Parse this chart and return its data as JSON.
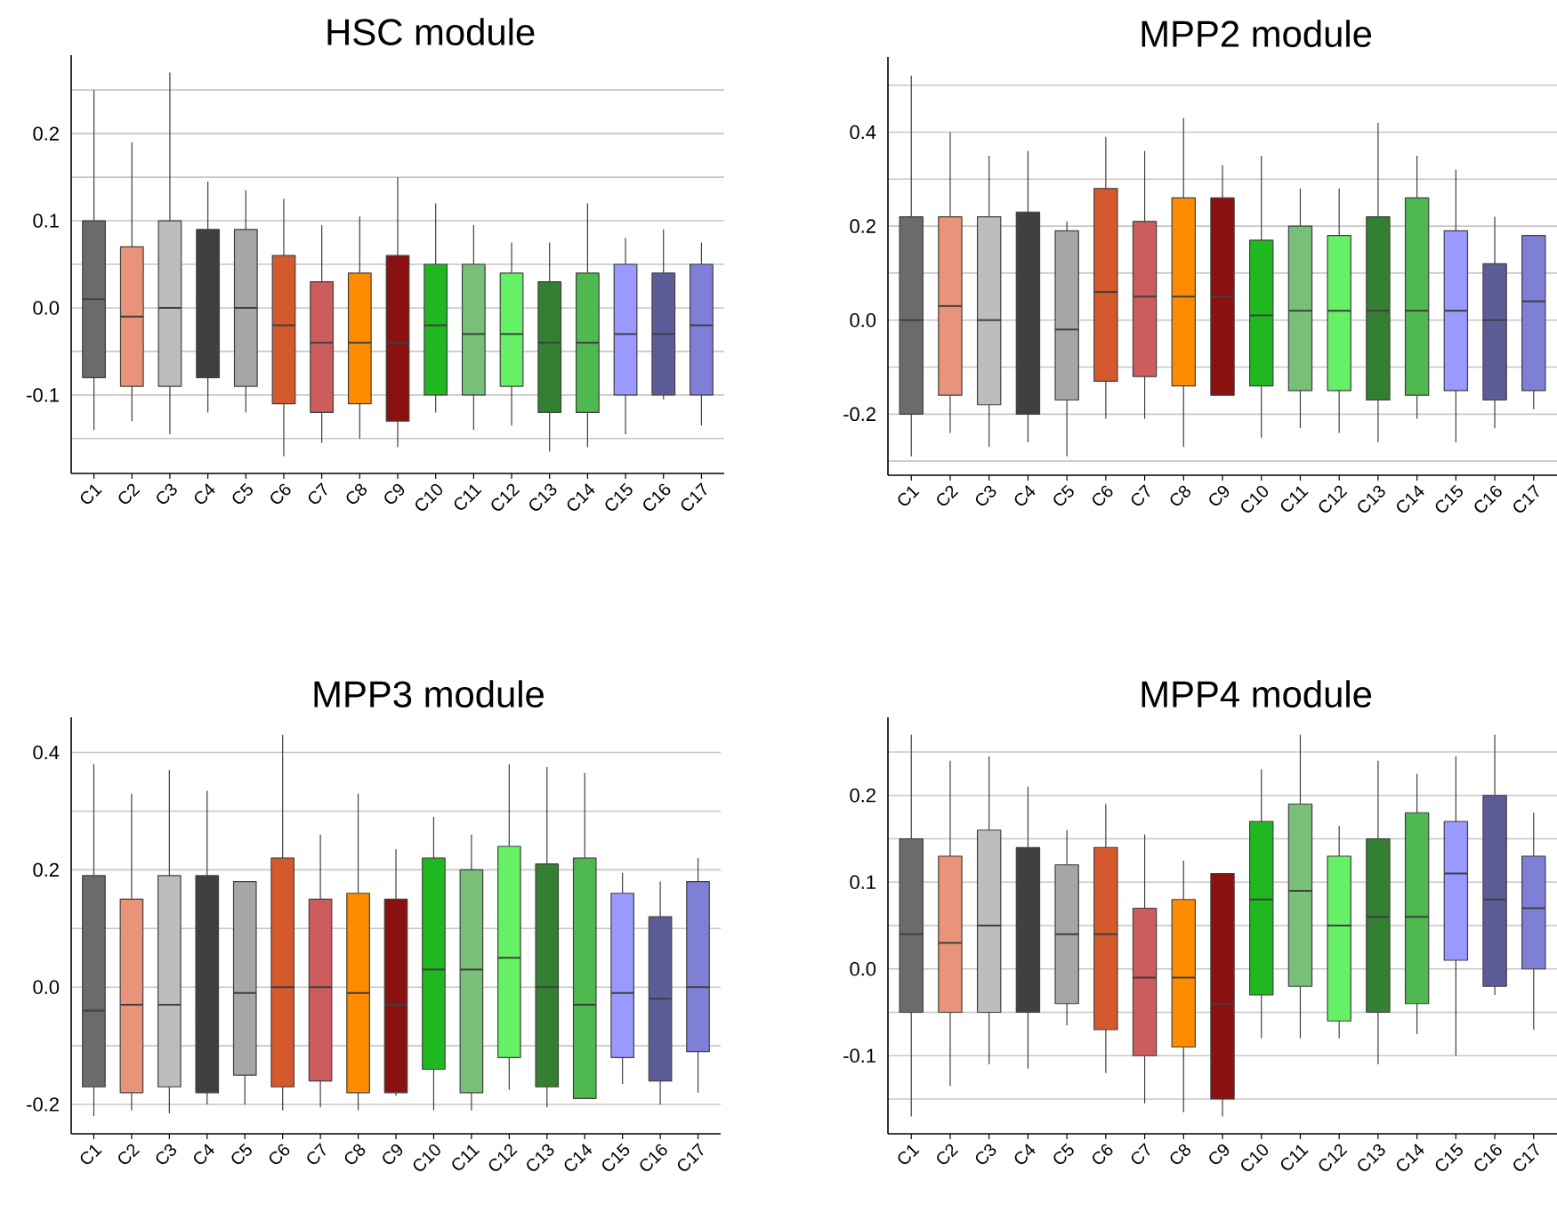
{
  "chart_data": [
    {
      "type": "box",
      "title": "HSC module",
      "categories": [
        "C1",
        "C2",
        "C3",
        "C4",
        "C5",
        "C6",
        "C7",
        "C8",
        "C9",
        "C10",
        "C11",
        "C12",
        "C13",
        "C14",
        "C15",
        "C16",
        "C17"
      ],
      "colors": [
        "#6b6b6b",
        "#e8937a",
        "#bdbdbd",
        "#404040",
        "#a6a6a6",
        "#d45a2e",
        "#cd5c5c",
        "#ff8c00",
        "#8b1010",
        "#20b820",
        "#78c078",
        "#66f066",
        "#338033",
        "#4fb84f",
        "#9999ff",
        "#5c5c99",
        "#7f7fd8"
      ],
      "boxes": [
        {
          "low": -0.14,
          "q1": -0.08,
          "median": 0.01,
          "q3": 0.1,
          "high": 0.25
        },
        {
          "low": -0.13,
          "q1": -0.09,
          "median": -0.01,
          "q3": 0.07,
          "high": 0.19
        },
        {
          "low": -0.145,
          "q1": -0.09,
          "median": 0.0,
          "q3": 0.1,
          "high": 0.27
        },
        {
          "low": -0.12,
          "q1": -0.08,
          "median": 0.01,
          "q3": 0.09,
          "high": 0.145
        },
        {
          "low": -0.12,
          "q1": -0.09,
          "median": 0.0,
          "q3": 0.09,
          "high": 0.135
        },
        {
          "low": -0.17,
          "q1": -0.11,
          "median": -0.02,
          "q3": 0.06,
          "high": 0.125
        },
        {
          "low": -0.155,
          "q1": -0.12,
          "median": -0.04,
          "q3": 0.03,
          "high": 0.095
        },
        {
          "low": -0.15,
          "q1": -0.11,
          "median": -0.04,
          "q3": 0.04,
          "high": 0.105
        },
        {
          "low": -0.16,
          "q1": -0.13,
          "median": -0.04,
          "q3": 0.06,
          "high": 0.15
        },
        {
          "low": -0.12,
          "q1": -0.1,
          "median": -0.02,
          "q3": 0.05,
          "high": 0.12
        },
        {
          "low": -0.14,
          "q1": -0.1,
          "median": -0.03,
          "q3": 0.05,
          "high": 0.095
        },
        {
          "low": -0.135,
          "q1": -0.09,
          "median": -0.03,
          "q3": 0.04,
          "high": 0.075
        },
        {
          "low": -0.165,
          "q1": -0.12,
          "median": -0.04,
          "q3": 0.03,
          "high": 0.075
        },
        {
          "low": -0.16,
          "q1": -0.12,
          "median": -0.04,
          "q3": 0.04,
          "high": 0.12
        },
        {
          "low": -0.145,
          "q1": -0.1,
          "median": -0.03,
          "q3": 0.05,
          "high": 0.08
        },
        {
          "low": -0.105,
          "q1": -0.1,
          "median": -0.03,
          "q3": 0.04,
          "high": 0.09
        },
        {
          "low": -0.135,
          "q1": -0.1,
          "median": -0.02,
          "q3": 0.05,
          "high": 0.075
        }
      ],
      "ylim": [
        -0.19,
        0.29
      ],
      "yticks": [
        {
          "value": -0.15,
          "label": null
        },
        -0.1,
        {
          "value": -0.05,
          "label": null
        },
        {
          "value": 0,
          "label": "0.0"
        },
        {
          "value": 0.05,
          "label": null
        },
        0.1,
        {
          "value": 0.15,
          "label": null
        },
        0.2,
        {
          "value": 0.25,
          "label": null
        }
      ],
      "grid": "y"
    },
    {
      "type": "box",
      "title": "MPP2 module",
      "categories": [
        "C1",
        "C2",
        "C3",
        "C4",
        "C5",
        "C6",
        "C7",
        "C8",
        "C9",
        "C10",
        "C11",
        "C12",
        "C13",
        "C14",
        "C15",
        "C16",
        "C17"
      ],
      "colors": [
        "#6b6b6b",
        "#e8937a",
        "#bdbdbd",
        "#404040",
        "#a6a6a6",
        "#d45a2e",
        "#cd5c5c",
        "#ff8c00",
        "#8b1010",
        "#20b820",
        "#78c078",
        "#66f066",
        "#338033",
        "#4fb84f",
        "#9999ff",
        "#5c5c99",
        "#7f7fd8"
      ],
      "boxes": [
        {
          "low": -0.29,
          "q1": -0.2,
          "median": 0.0,
          "q3": 0.22,
          "high": 0.52
        },
        {
          "low": -0.24,
          "q1": -0.16,
          "median": 0.03,
          "q3": 0.22,
          "high": 0.4
        },
        {
          "low": -0.27,
          "q1": -0.18,
          "median": 0.0,
          "q3": 0.22,
          "high": 0.35
        },
        {
          "low": -0.26,
          "q1": -0.2,
          "median": 0.0,
          "q3": 0.23,
          "high": 0.36
        },
        {
          "low": -0.29,
          "q1": -0.17,
          "median": -0.02,
          "q3": 0.19,
          "high": 0.21
        },
        {
          "low": -0.21,
          "q1": -0.13,
          "median": 0.06,
          "q3": 0.28,
          "high": 0.39
        },
        {
          "low": -0.21,
          "q1": -0.12,
          "median": 0.05,
          "q3": 0.21,
          "high": 0.36
        },
        {
          "low": -0.27,
          "q1": -0.14,
          "median": 0.05,
          "q3": 0.26,
          "high": 0.43
        },
        {
          "low": -0.16,
          "q1": -0.16,
          "median": 0.05,
          "q3": 0.26,
          "high": 0.33
        },
        {
          "low": -0.25,
          "q1": -0.14,
          "median": 0.01,
          "q3": 0.17,
          "high": 0.35
        },
        {
          "low": -0.23,
          "q1": -0.15,
          "median": 0.02,
          "q3": 0.2,
          "high": 0.28
        },
        {
          "low": -0.24,
          "q1": -0.15,
          "median": 0.02,
          "q3": 0.18,
          "high": 0.28
        },
        {
          "low": -0.26,
          "q1": -0.17,
          "median": 0.02,
          "q3": 0.22,
          "high": 0.42
        },
        {
          "low": -0.21,
          "q1": -0.16,
          "median": 0.02,
          "q3": 0.26,
          "high": 0.35
        },
        {
          "low": -0.26,
          "q1": -0.15,
          "median": 0.02,
          "q3": 0.19,
          "high": 0.32
        },
        {
          "low": -0.23,
          "q1": -0.17,
          "median": 0.0,
          "q3": 0.12,
          "high": 0.22
        },
        {
          "low": -0.19,
          "q1": -0.15,
          "median": 0.04,
          "q3": 0.18,
          "high": 0.18
        }
      ],
      "ylim": [
        -0.33,
        0.56
      ],
      "yticks": [
        {
          "value": -0.3,
          "label": null
        },
        -0.2,
        {
          "value": -0.1,
          "label": null
        },
        {
          "value": 0,
          "label": "0.0"
        },
        {
          "value": 0.1,
          "label": null
        },
        0.2,
        {
          "value": 0.3,
          "label": null
        },
        0.4,
        {
          "value": 0.5,
          "label": null
        }
      ],
      "grid": "y"
    },
    {
      "type": "box",
      "title": "MPP3 module",
      "categories": [
        "C1",
        "C2",
        "C3",
        "C4",
        "C5",
        "C6",
        "C7",
        "C8",
        "C9",
        "C10",
        "C11",
        "C12",
        "C13",
        "C14",
        "C15",
        "C16",
        "C17"
      ],
      "colors": [
        "#6b6b6b",
        "#e8937a",
        "#bdbdbd",
        "#404040",
        "#a6a6a6",
        "#d45a2e",
        "#cd5c5c",
        "#ff8c00",
        "#8b1010",
        "#20b820",
        "#78c078",
        "#66f066",
        "#338033",
        "#4fb84f",
        "#9999ff",
        "#5c5c99",
        "#7f7fd8"
      ],
      "boxes": [
        {
          "low": -0.22,
          "q1": -0.17,
          "median": -0.04,
          "q3": 0.19,
          "high": 0.38
        },
        {
          "low": -0.21,
          "q1": -0.18,
          "median": -0.03,
          "q3": 0.15,
          "high": 0.33
        },
        {
          "low": -0.215,
          "q1": -0.17,
          "median": -0.03,
          "q3": 0.19,
          "high": 0.37
        },
        {
          "low": -0.2,
          "q1": -0.18,
          "median": -0.05,
          "q3": 0.19,
          "high": 0.335
        },
        {
          "low": -0.2,
          "q1": -0.15,
          "median": -0.01,
          "q3": 0.18,
          "high": 0.18
        },
        {
          "low": -0.21,
          "q1": -0.17,
          "median": 0.0,
          "q3": 0.22,
          "high": 0.43
        },
        {
          "low": -0.205,
          "q1": -0.16,
          "median": 0.0,
          "q3": 0.15,
          "high": 0.26
        },
        {
          "low": -0.21,
          "q1": -0.18,
          "median": -0.01,
          "q3": 0.16,
          "high": 0.33
        },
        {
          "low": -0.185,
          "q1": -0.18,
          "median": -0.03,
          "q3": 0.15,
          "high": 0.235
        },
        {
          "low": -0.21,
          "q1": -0.14,
          "median": 0.03,
          "q3": 0.22,
          "high": 0.29
        },
        {
          "low": -0.21,
          "q1": -0.18,
          "median": 0.03,
          "q3": 0.2,
          "high": 0.26
        },
        {
          "low": -0.175,
          "q1": -0.12,
          "median": 0.05,
          "q3": 0.24,
          "high": 0.38
        },
        {
          "low": -0.205,
          "q1": -0.17,
          "median": 0.0,
          "q3": 0.21,
          "high": 0.375
        },
        {
          "low": -0.19,
          "q1": -0.19,
          "median": -0.03,
          "q3": 0.22,
          "high": 0.365
        },
        {
          "low": -0.165,
          "q1": -0.12,
          "median": -0.01,
          "q3": 0.16,
          "high": 0.195
        },
        {
          "low": -0.2,
          "q1": -0.16,
          "median": -0.02,
          "q3": 0.12,
          "high": 0.18
        },
        {
          "low": -0.18,
          "q1": -0.11,
          "median": 0.0,
          "q3": 0.18,
          "high": 0.22
        }
      ],
      "ylim": [
        -0.25,
        0.46
      ],
      "yticks": [
        -0.2,
        {
          "value": -0.1,
          "label": null
        },
        {
          "value": 0,
          "label": "0.0"
        },
        {
          "value": 0.1,
          "label": null
        },
        0.2,
        {
          "value": 0.3,
          "label": null
        },
        0.4
      ],
      "grid": "y"
    },
    {
      "type": "box",
      "title": "MPP4 module",
      "categories": [
        "C1",
        "C2",
        "C3",
        "C4",
        "C5",
        "C6",
        "C7",
        "C8",
        "C9",
        "C10",
        "C11",
        "C12",
        "C13",
        "C14",
        "C15",
        "C16",
        "C17"
      ],
      "colors": [
        "#6b6b6b",
        "#e8937a",
        "#bdbdbd",
        "#404040",
        "#a6a6a6",
        "#d45a2e",
        "#cd5c5c",
        "#ff8c00",
        "#8b1010",
        "#20b820",
        "#78c078",
        "#66f066",
        "#338033",
        "#4fb84f",
        "#9999ff",
        "#5c5c99",
        "#7f7fd8"
      ],
      "boxes": [
        {
          "low": -0.17,
          "q1": -0.05,
          "median": 0.04,
          "q3": 0.15,
          "high": 0.27
        },
        {
          "low": -0.135,
          "q1": -0.05,
          "median": 0.03,
          "q3": 0.13,
          "high": 0.24
        },
        {
          "low": -0.11,
          "q1": -0.05,
          "median": 0.05,
          "q3": 0.16,
          "high": 0.245
        },
        {
          "low": -0.115,
          "q1": -0.05,
          "median": 0.05,
          "q3": 0.14,
          "high": 0.21
        },
        {
          "low": -0.065,
          "q1": -0.04,
          "median": 0.04,
          "q3": 0.12,
          "high": 0.16
        },
        {
          "low": -0.12,
          "q1": -0.07,
          "median": 0.04,
          "q3": 0.14,
          "high": 0.19
        },
        {
          "low": -0.155,
          "q1": -0.1,
          "median": -0.01,
          "q3": 0.07,
          "high": 0.155
        },
        {
          "low": -0.165,
          "q1": -0.09,
          "median": -0.01,
          "q3": 0.08,
          "high": 0.125
        },
        {
          "low": -0.17,
          "q1": -0.15,
          "median": -0.04,
          "q3": 0.11,
          "high": 0.11
        },
        {
          "low": -0.08,
          "q1": -0.03,
          "median": 0.08,
          "q3": 0.17,
          "high": 0.23
        },
        {
          "low": -0.08,
          "q1": -0.02,
          "median": 0.09,
          "q3": 0.19,
          "high": 0.27
        },
        {
          "low": -0.08,
          "q1": -0.06,
          "median": 0.05,
          "q3": 0.13,
          "high": 0.165
        },
        {
          "low": -0.11,
          "q1": -0.05,
          "median": 0.06,
          "q3": 0.15,
          "high": 0.24
        },
        {
          "low": -0.075,
          "q1": -0.04,
          "median": 0.06,
          "q3": 0.18,
          "high": 0.225
        },
        {
          "low": -0.1,
          "q1": 0.01,
          "median": 0.11,
          "q3": 0.17,
          "high": 0.245
        },
        {
          "low": -0.03,
          "q1": -0.02,
          "median": 0.08,
          "q3": 0.2,
          "high": 0.27
        },
        {
          "low": -0.07,
          "q1": 0.0,
          "median": 0.07,
          "q3": 0.13,
          "high": 0.18
        }
      ],
      "ylim": [
        -0.19,
        0.29
      ],
      "yticks": [
        {
          "value": -0.15,
          "label": null
        },
        -0.1,
        {
          "value": -0.05,
          "label": null
        },
        {
          "value": 0,
          "label": "0.0"
        },
        {
          "value": 0.05,
          "label": null
        },
        0.1,
        {
          "value": 0.15,
          "label": null
        },
        0.2,
        {
          "value": 0.25,
          "label": null
        }
      ],
      "grid": "y"
    }
  ]
}
